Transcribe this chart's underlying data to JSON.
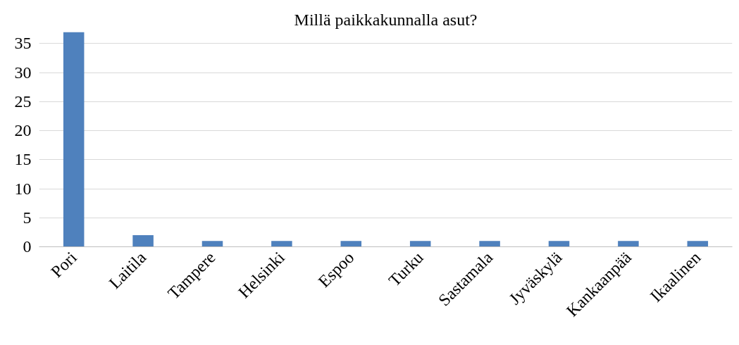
{
  "chart_data": {
    "type": "bar",
    "title": "Millä paikkakunnalla asut?",
    "categories": [
      "Pori",
      "Laitila",
      "Tampere",
      "Helsinki",
      "Espoo",
      "Turku",
      "Sastamala",
      "Jyväskylä",
      "Kankaanpää",
      "Ikaalinen"
    ],
    "values": [
      37,
      2,
      1,
      1,
      1,
      1,
      1,
      1,
      1,
      1
    ],
    "color": "#4f81bd",
    "ylim": [
      0,
      37
    ],
    "yticks": [
      0,
      5,
      10,
      15,
      20,
      25,
      30,
      35
    ],
    "grid": "y"
  }
}
